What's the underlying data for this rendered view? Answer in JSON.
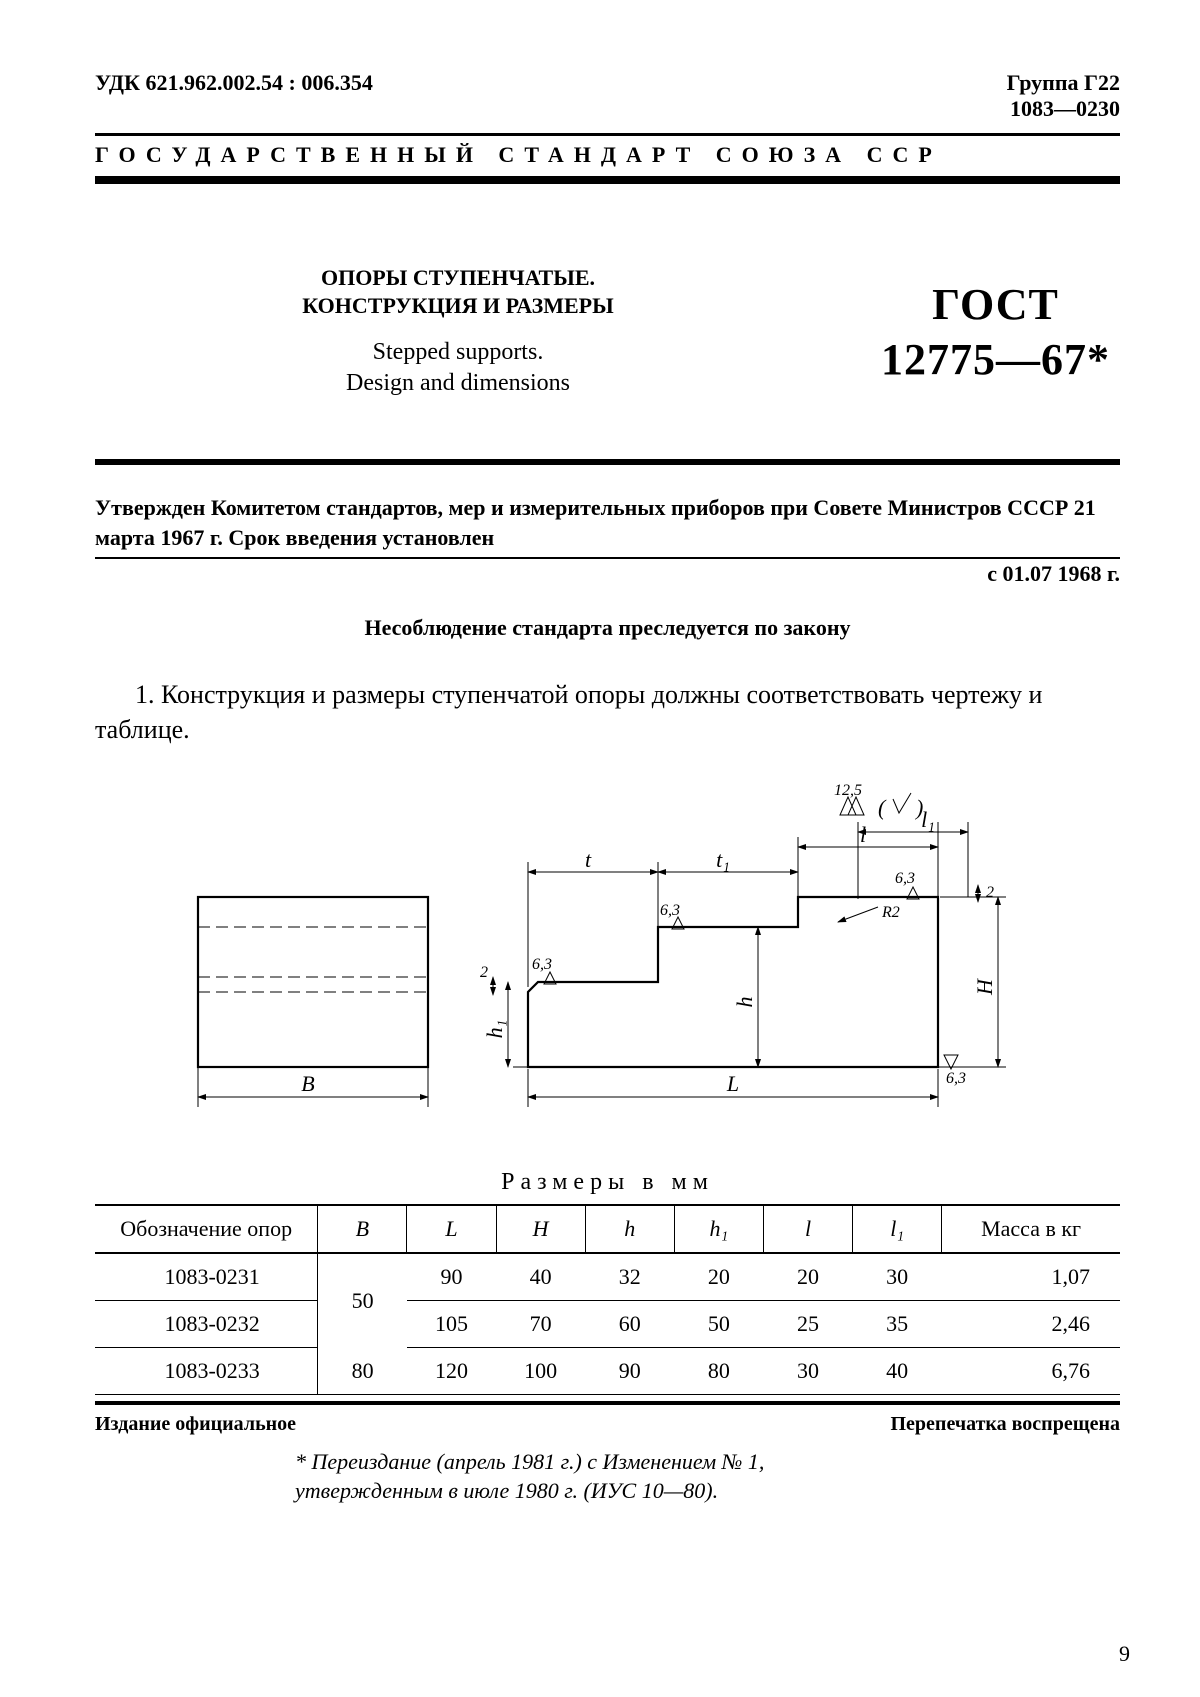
{
  "header": {
    "udk": "УДК 621.962.002.54 : 006.354",
    "group": "Группа Г22",
    "code": "1083—0230",
    "banner": "ГОСУДАРСТВЕННЫЙ   СТАНДАРТ   СОЮЗА   ССР"
  },
  "title": {
    "ru_line1": "ОПОРЫ СТУПЕНЧАТЫЕ.",
    "ru_line2": "КОНСТРУКЦИЯ И РАЗМЕРЫ",
    "en_line1": "Stepped supports.",
    "en_line2": "Design and dimensions",
    "gost_word": "ГОСТ",
    "gost_num": "12775—67*"
  },
  "approval": {
    "text": "Утвержден Комитетом стандартов, мер и измерительных приборов при Совете Министров СССР 21 марта 1967 г. Срок введения установлен",
    "since": "с 01.07 1968 г.",
    "law": "Несоблюдение стандарта преследуется по закону"
  },
  "clause1": "1. Конструкция и размеры ступенчатой опоры должны соответствовать чертежу и таблице.",
  "figure": {
    "labels": {
      "B": "B",
      "L": "L",
      "H": "H",
      "h": "h",
      "h1": "h₁",
      "l": "l",
      "l1": "l₁",
      "t": "t",
      "t1": "t₁",
      "R2": "R2",
      "r63": "6,3",
      "r125": "12,5",
      "two": "2"
    }
  },
  "table": {
    "caption": "Размеры в мм",
    "columns": [
      "Обозначение опор",
      "B",
      "L",
      "H",
      "h",
      "h₁",
      "l",
      "l₁",
      "Масса в кг"
    ],
    "rows": [
      {
        "desig": "1083-0231",
        "B": "50",
        "L": "90",
        "H": "40",
        "h": "32",
        "h1": "20",
        "l": "20",
        "l1": "30",
        "mass": "1,07",
        "B_rowspan": 2
      },
      {
        "desig": "1083-0232",
        "B": "",
        "L": "105",
        "H": "70",
        "h": "60",
        "h1": "50",
        "l": "25",
        "l1": "35",
        "mass": "2,46"
      },
      {
        "desig": "1083-0233",
        "B": "80",
        "L": "120",
        "H": "100",
        "h": "90",
        "h1": "80",
        "l": "30",
        "l1": "40",
        "mass": "6,76"
      }
    ]
  },
  "footer": {
    "left": "Издание официальное",
    "right": "Перепечатка воспрещена",
    "note_l1": "* Переиздание (апрель 1981 г.) с Изменением № 1,",
    "note_l2": "утвержденным в июле 1980 г. (ИУС 10—80).",
    "page": "9"
  }
}
